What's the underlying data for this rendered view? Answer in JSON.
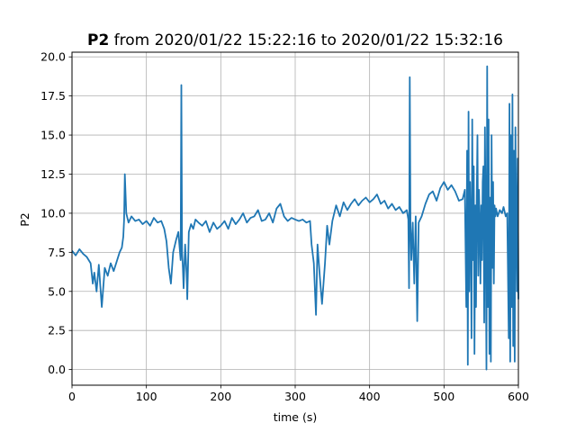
{
  "chart_data": {
    "type": "line",
    "title_bold": "P2",
    "title_rest": " from 2020/01/22 15:22:16 to 2020/01/22 15:32:16",
    "xlabel": "time (s)",
    "ylabel": "P2",
    "xlim": [
      0,
      600
    ],
    "ylim": [
      -1.0,
      20.3
    ],
    "xticks": [
      0,
      100,
      200,
      300,
      400,
      500,
      600
    ],
    "yticks": [
      0.0,
      2.5,
      5.0,
      7.5,
      10.0,
      12.5,
      15.0,
      17.5,
      20.0
    ],
    "xtick_labels": [
      "0",
      "100",
      "200",
      "300",
      "400",
      "500",
      "600"
    ],
    "ytick_labels": [
      "0.0",
      "2.5",
      "5.0",
      "7.5",
      "10.0",
      "12.5",
      "15.0",
      "17.5",
      "20.0"
    ],
    "grid": true,
    "series": [
      {
        "color": "#1f77b4",
        "x": [
          0,
          5,
          10,
          15,
          20,
          25,
          28,
          30,
          33,
          36,
          40,
          44,
          48,
          52,
          56,
          60,
          64,
          67,
          69,
          70,
          71,
          73,
          76,
          80,
          85,
          90,
          95,
          100,
          105,
          110,
          115,
          120,
          124,
          127,
          130,
          133,
          136,
          140,
          143,
          146,
          147,
          148,
          149,
          150,
          152,
          154,
          155,
          157,
          160,
          163,
          166,
          170,
          175,
          180,
          185,
          190,
          195,
          200,
          205,
          210,
          215,
          220,
          225,
          230,
          235,
          240,
          245,
          250,
          255,
          260,
          265,
          270,
          275,
          280,
          285,
          290,
          295,
          300,
          305,
          310,
          315,
          320,
          322,
          325,
          328,
          330,
          333,
          336,
          340,
          343,
          346,
          350,
          355,
          360,
          365,
          370,
          375,
          380,
          385,
          390,
          395,
          400,
          405,
          410,
          415,
          420,
          425,
          430,
          435,
          440,
          445,
          450,
          452,
          453,
          454,
          455,
          456,
          458,
          460,
          462,
          464,
          466,
          470,
          475,
          480,
          485,
          490,
          495,
          500,
          505,
          510,
          515,
          520,
          525,
          528,
          530,
          531,
          532,
          533,
          534,
          535,
          536,
          537,
          538,
          539,
          540,
          541,
          542,
          543,
          544,
          545,
          546,
          547,
          548,
          549,
          550,
          551,
          552,
          553,
          554,
          555,
          556,
          557,
          558,
          559,
          560,
          561,
          562,
          563,
          564,
          565,
          566,
          567,
          568,
          569,
          570,
          572,
          575,
          578,
          580,
          583,
          585,
          587,
          588,
          589,
          590,
          591,
          592,
          593,
          594,
          595,
          596,
          597,
          598,
          599,
          600
        ],
        "values": [
          7.6,
          7.3,
          7.7,
          7.4,
          7.2,
          6.8,
          5.5,
          6.2,
          5.0,
          6.7,
          4.0,
          6.5,
          6.0,
          6.8,
          6.3,
          6.9,
          7.5,
          7.8,
          8.5,
          9.6,
          12.5,
          10.0,
          9.4,
          9.8,
          9.5,
          9.6,
          9.3,
          9.5,
          9.2,
          9.7,
          9.4,
          9.5,
          9.0,
          8.2,
          6.5,
          5.5,
          7.5,
          8.3,
          8.8,
          7.0,
          18.2,
          7.5,
          6.5,
          5.2,
          8.0,
          6.2,
          4.5,
          8.8,
          9.3,
          9.0,
          9.6,
          9.4,
          9.2,
          9.5,
          8.8,
          9.4,
          9.0,
          9.2,
          9.5,
          9.0,
          9.7,
          9.3,
          9.6,
          10.0,
          9.4,
          9.7,
          9.8,
          10.2,
          9.5,
          9.6,
          10.0,
          9.4,
          10.3,
          10.6,
          9.8,
          9.5,
          9.7,
          9.6,
          9.5,
          9.6,
          9.4,
          9.5,
          8.0,
          6.8,
          3.5,
          8.0,
          6.0,
          4.2,
          6.8,
          9.2,
          8.0,
          9.5,
          10.5,
          9.8,
          10.7,
          10.2,
          10.6,
          10.9,
          10.5,
          10.8,
          11.0,
          10.7,
          10.9,
          11.2,
          10.6,
          10.8,
          10.3,
          10.6,
          10.2,
          10.4,
          10.0,
          10.2,
          9.6,
          5.2,
          18.7,
          9.2,
          7.0,
          9.4,
          5.5,
          9.8,
          3.1,
          9.4,
          9.8,
          10.6,
          11.2,
          11.4,
          10.8,
          11.6,
          12.0,
          11.5,
          11.8,
          11.4,
          10.8,
          10.9,
          11.5,
          4.0,
          14.0,
          0.3,
          16.5,
          5.0,
          12.0,
          9.0,
          2.0,
          16.0,
          7.0,
          13.0,
          1.0,
          10.5,
          4.0,
          11.0,
          15.0,
          6.0,
          11.5,
          9.5,
          5.5,
          10.5,
          7.0,
          12.0,
          13.0,
          3.0,
          15.5,
          9.5,
          0.0,
          19.4,
          4.0,
          16.0,
          1.0,
          11.0,
          0.5,
          15.0,
          6.5,
          12.0,
          5.5,
          10.5,
          9.8,
          10.3,
          9.8,
          10.2,
          10.0,
          10.4,
          9.8,
          10.0,
          2.0,
          17.0,
          0.5,
          15.0,
          4.0,
          17.6,
          1.5,
          14.0,
          0.5,
          15.5,
          9.5,
          5.0,
          13.5,
          4.5
        ]
      }
    ]
  }
}
